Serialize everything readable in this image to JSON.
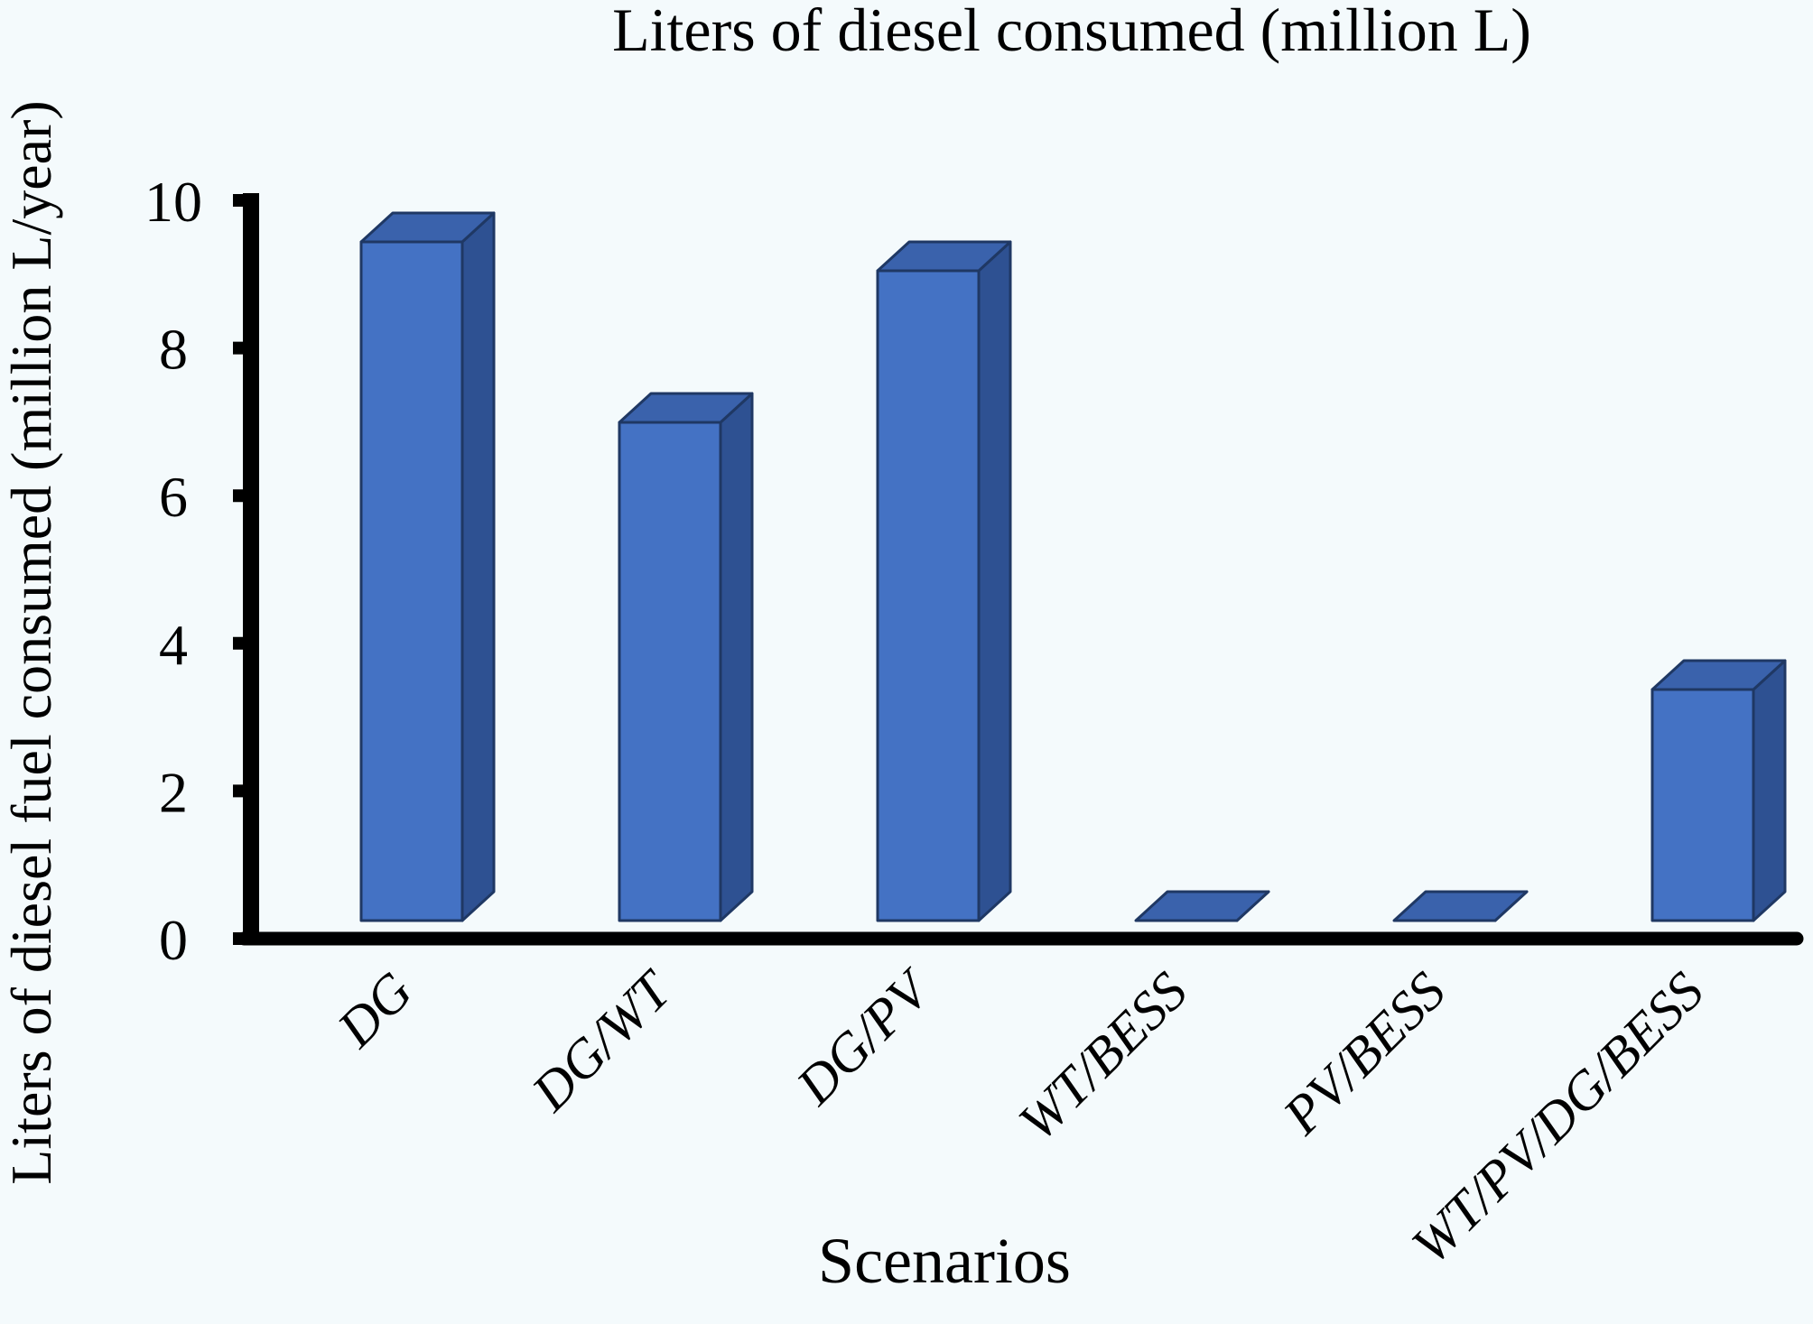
{
  "figure": {
    "background": "#F4FAFC"
  },
  "chart_data": {
    "type": "bar",
    "style": "3d-column",
    "title": "Liters of diesel consumed (million L)",
    "xlabel": "Scenarios",
    "ylabel": "Liters of diesel fuel consumed (million L/year)",
    "categories": [
      "DG",
      "DG/WT",
      "DG/PV",
      "WT/BESS",
      "PV/BESS",
      "WT/PV/DG/BESS"
    ],
    "values": [
      9.4,
      6.9,
      9.0,
      0,
      0,
      3.2
    ],
    "yticks": [
      0,
      2,
      4,
      6,
      8,
      10
    ],
    "ylim": [
      0,
      10
    ],
    "grid": false,
    "legend": false,
    "colors": {
      "bar_front": "#4472C4",
      "bar_top": "#3A62AC",
      "bar_side": "#2E5192",
      "bar_outline": "#1F3864",
      "axis": "#000000",
      "text": "#000000"
    }
  }
}
